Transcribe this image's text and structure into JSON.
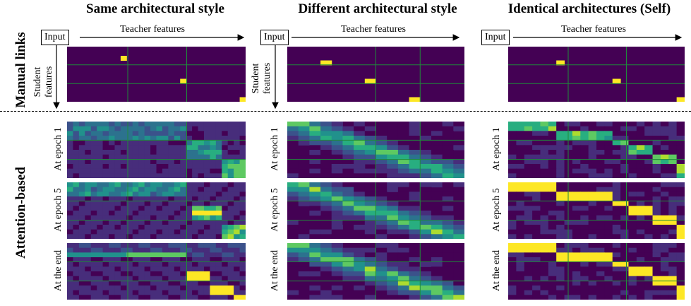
{
  "column_titles": [
    "Same architectural style",
    "Different architectural style",
    "Identical architectures (Self)"
  ],
  "row_labels": {
    "manual": "Manual links",
    "attention": "Attention-based"
  },
  "input_label": "Input",
  "teacher_label": "Teacher features",
  "student_label": [
    "Student",
    "features"
  ],
  "sub_labels": [
    "At epoch 1",
    "At epoch 5",
    "At the end"
  ],
  "colors": {
    "background": "#440154",
    "grid": "#1f8a3a",
    "yellow": "#fde725"
  }
}
